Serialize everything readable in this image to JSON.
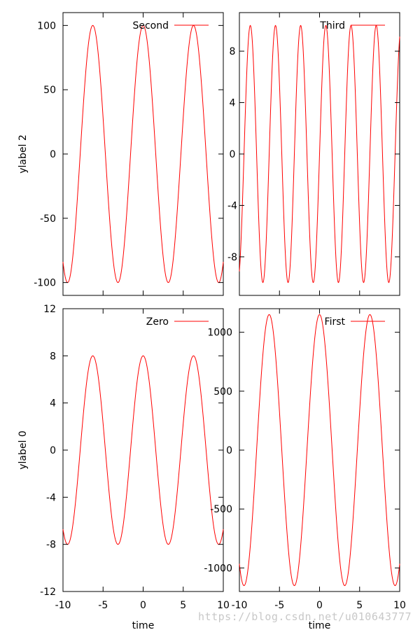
{
  "colors": {
    "curve": "#ff0000",
    "frame": "#000000",
    "background": "#ffffff"
  },
  "chart_data": [
    {
      "id": "second",
      "type": "line",
      "ylabel": "ylabel 2",
      "xlabel": "",
      "xlim": [
        -10,
        10
      ],
      "ylim": [
        -110,
        110
      ],
      "x_ticks": [
        -10,
        -5,
        0,
        5,
        10
      ],
      "y_ticks": [
        -100,
        -50,
        0,
        50,
        100
      ],
      "y_tick_labels": [
        "-100",
        "-50",
        "0",
        "50",
        "100"
      ],
      "show_x_tick_labels": false,
      "y_tick_side": "left",
      "legend_position": "top-right",
      "series": [
        {
          "name": "Second",
          "function": "100*cos(x)",
          "x": [
            -10,
            -9,
            -8,
            -7,
            -6,
            -5,
            -4,
            -3,
            -2,
            -1,
            0,
            1,
            2,
            3,
            4,
            5,
            6,
            7,
            8,
            9,
            10
          ],
          "y": [
            -84,
            -91,
            -15,
            75,
            96,
            28,
            -65,
            -99,
            -42,
            54,
            100,
            54,
            -42,
            -99,
            -65,
            28,
            96,
            75,
            -15,
            -91,
            -84
          ]
        }
      ]
    },
    {
      "id": "third",
      "type": "line",
      "ylabel": "",
      "xlabel": "",
      "xlim": [
        -10,
        10
      ],
      "ylim": [
        -11,
        11
      ],
      "x_ticks": [
        -10,
        -5,
        0,
        5,
        10
      ],
      "y_ticks": [
        -8,
        -4,
        0,
        4,
        8
      ],
      "y_tick_labels": [
        "-8",
        "-4",
        "0",
        "4",
        "8"
      ],
      "show_x_tick_labels": false,
      "y_tick_side": "left-inside",
      "legend_position": "top-right",
      "series": [
        {
          "name": "Third",
          "function": "10*sin(2x)",
          "x": [
            -10,
            -9,
            -8,
            -7,
            -6,
            -5,
            -4,
            -3,
            -2,
            -1,
            0,
            1,
            2,
            3,
            4,
            5,
            6,
            7,
            8,
            9,
            10
          ],
          "y": [
            -9.1,
            7.5,
            2.9,
            -9.9,
            5.4,
            5.4,
            -9.9,
            2.8,
            7.6,
            -9.1,
            0,
            9.1,
            -7.6,
            -2.8,
            9.9,
            -5.4,
            -5.4,
            9.9,
            -2.9,
            -7.5,
            9.1
          ]
        }
      ]
    },
    {
      "id": "zero",
      "type": "line",
      "ylabel": "ylabel 0",
      "xlabel": "time",
      "xlim": [
        -10,
        10
      ],
      "ylim": [
        -12,
        12
      ],
      "x_ticks": [
        -10,
        -5,
        0,
        5,
        10
      ],
      "x_tick_labels": [
        "-10",
        "-5",
        "0",
        "5",
        "10"
      ],
      "y_ticks": [
        -12,
        -8,
        -4,
        0,
        4,
        8,
        12
      ],
      "y_tick_labels": [
        "-12",
        "-8",
        "-4",
        "0",
        "4",
        "8",
        "12"
      ],
      "show_x_tick_labels": true,
      "y_tick_side": "left",
      "legend_position": "top-right",
      "series": [
        {
          "name": "Zero",
          "function": "8*cos(x)",
          "x": [
            -10,
            -9,
            -8,
            -7,
            -6,
            -5,
            -4,
            -3,
            -2,
            -1,
            0,
            1,
            2,
            3,
            4,
            5,
            6,
            7,
            8,
            9,
            10
          ],
          "y": [
            -6.7,
            -7.3,
            -1.2,
            6.0,
            7.7,
            2.3,
            -5.2,
            -7.9,
            -3.3,
            4.3,
            8.0,
            4.3,
            -3.3,
            -7.9,
            -5.2,
            2.3,
            7.7,
            6.0,
            -1.2,
            -7.3,
            -6.7
          ]
        }
      ]
    },
    {
      "id": "first",
      "type": "line",
      "ylabel": "",
      "xlabel": "time",
      "xlim": [
        -10,
        10
      ],
      "ylim": [
        -1200,
        1200
      ],
      "x_ticks": [
        -10,
        -5,
        0,
        5,
        10
      ],
      "x_tick_labels": [
        "-10",
        "-5",
        "0",
        "5",
        "10"
      ],
      "y_ticks": [
        -1000,
        -500,
        0,
        500,
        1000
      ],
      "y_tick_labels": [
        "-1000",
        "-500",
        "0",
        "500",
        "1000"
      ],
      "show_x_tick_labels": true,
      "y_tick_side": "left",
      "legend_position": "top-right",
      "series": [
        {
          "name": "First",
          "function": "1150*cos(x)",
          "x": [
            -10,
            -9,
            -8,
            -7,
            -6,
            -5,
            -4,
            -3,
            -2,
            -1,
            0,
            1,
            2,
            3,
            4,
            5,
            6,
            7,
            8,
            9,
            10
          ],
          "y": [
            -965,
            -1048,
            -167,
            867,
            1104,
            326,
            -752,
            -1139,
            -479,
            621,
            1150,
            621,
            -479,
            -1139,
            -752,
            326,
            1104,
            867,
            -167,
            -1048,
            -965
          ]
        }
      ]
    }
  ],
  "watermark": "https://blog.csdn.net/u010643777"
}
